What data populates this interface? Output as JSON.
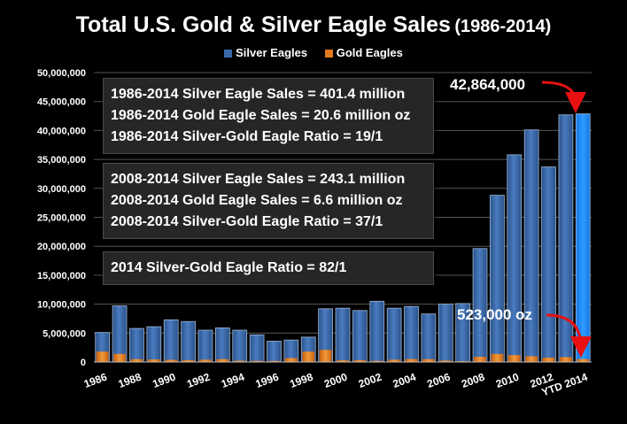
{
  "chart_data": {
    "type": "bar",
    "title": "Total U.S. Gold & Silver Eagle Sales",
    "subtitle": "(1986-2014)",
    "xlabel": "",
    "ylabel": "",
    "ylim": [
      0,
      50000000
    ],
    "yticks": [
      "0",
      "5,000,000",
      "10,000,000",
      "15,000,000",
      "20,000,000",
      "25,000,000",
      "30,000,000",
      "35,000,000",
      "40,000,000",
      "45,000,000",
      "50,000,000"
    ],
    "grid": true,
    "legend_position": "top-center",
    "categories": [
      "1986",
      "1987",
      "1988",
      "1989",
      "1990",
      "1991",
      "1992",
      "1993",
      "1994",
      "1995",
      "1996",
      "1997",
      "1998",
      "1999",
      "2000",
      "2001",
      "2002",
      "2003",
      "2004",
      "2005",
      "2006",
      "2007",
      "2008",
      "2009",
      "2010",
      "2011",
      "2012",
      "2013",
      "YTD 2014"
    ],
    "xtick_labels": [
      {
        "label": "1986",
        "index": 0
      },
      {
        "label": "1988",
        "index": 2
      },
      {
        "label": "1990",
        "index": 4
      },
      {
        "label": "1992",
        "index": 6
      },
      {
        "label": "1994",
        "index": 8
      },
      {
        "label": "1996",
        "index": 10
      },
      {
        "label": "1998",
        "index": 12
      },
      {
        "label": "2000",
        "index": 14
      },
      {
        "label": "2002",
        "index": 16
      },
      {
        "label": "2004",
        "index": 18
      },
      {
        "label": "2006",
        "index": 20
      },
      {
        "label": "2008",
        "index": 22
      },
      {
        "label": "2010",
        "index": 24
      },
      {
        "label": "2012",
        "index": 26
      },
      {
        "label": "YTD 2014",
        "index": 28
      }
    ],
    "series": [
      {
        "name": "Silver Eagles",
        "color": "#3a69a8",
        "values": [
          5100000,
          9700000,
          5800000,
          6100000,
          7300000,
          7000000,
          5500000,
          5900000,
          5500000,
          4700000,
          3600000,
          3800000,
          4300000,
          9200000,
          9300000,
          8900000,
          10500000,
          9300000,
          9600000,
          8300000,
          10000000,
          10100000,
          19600000,
          28800000,
          35800000,
          40100000,
          33700000,
          42700000,
          42864000
        ]
      },
      {
        "name": "Gold Eagles",
        "color": "#e07820",
        "values": [
          1800000,
          1400000,
          500000,
          450000,
          380000,
          330000,
          400000,
          500000,
          220000,
          200000,
          190000,
          680000,
          1800000,
          2100000,
          300000,
          320000,
          200000,
          400000,
          520000,
          500000,
          250000,
          150000,
          900000,
          1400000,
          1200000,
          1000000,
          750000,
          850000,
          523000
        ]
      }
    ],
    "highlight_index": 28,
    "highlight_color": "#1e90ff",
    "annotations": {
      "box1": [
        "1986-2014 Silver Eagle Sales = 401.4 million",
        "1986-2014 Gold Eagle Sales = 20.6 million oz",
        "1986-2014 Silver-Gold Eagle Ratio = 19/1"
      ],
      "box2": [
        "2008-2014 Silver Eagle Sales = 243.1 million",
        "2008-2014 Gold Eagle Sales = 6.6 million oz",
        "2008-2014 Silver-Gold Eagle Ratio = 37/1"
      ],
      "box3": [
        "2014 Silver-Gold Eagle Ratio = 82/1"
      ],
      "callout_silver": "42,864,000",
      "callout_gold": "523,000 oz",
      "arrow_color": "#e81010"
    }
  }
}
